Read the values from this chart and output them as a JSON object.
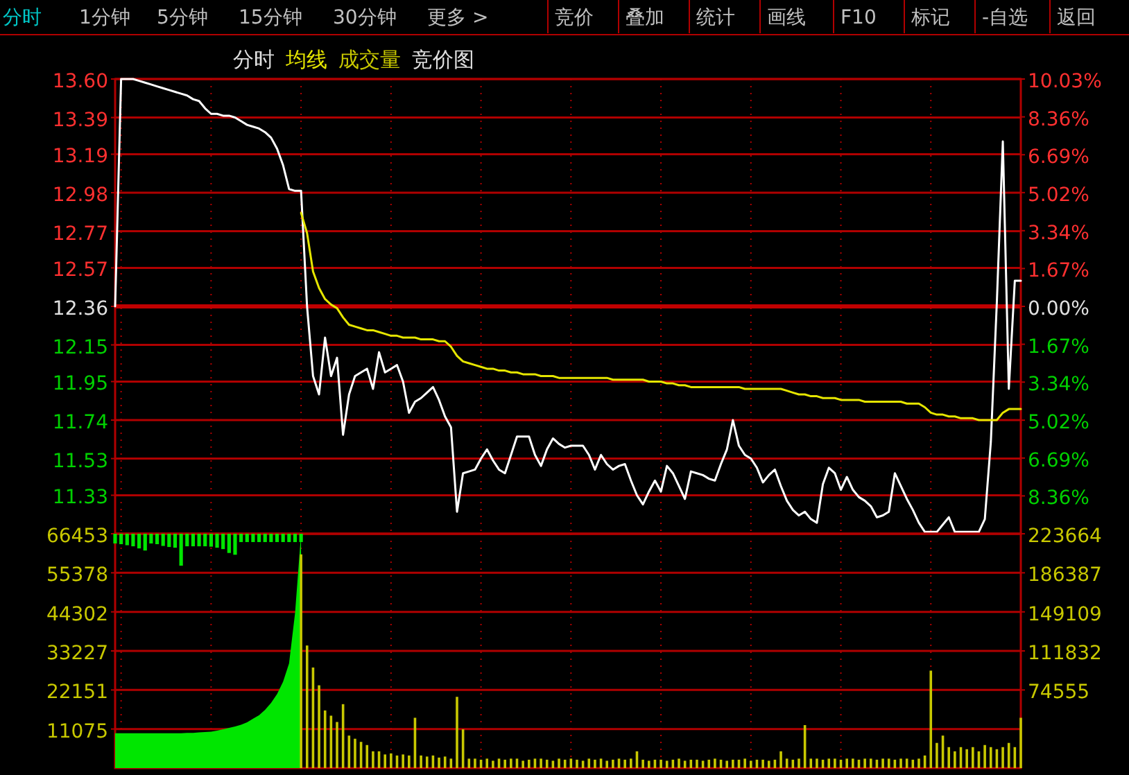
{
  "chart_data": [
    {
      "type": "line",
      "annotations": [
        "分时",
        "1分钟",
        "5分钟",
        "15分钟",
        "30分钟",
        "更多 >",
        "竞价",
        "叠加",
        "统计",
        "画线",
        "F10",
        "标记",
        "-自选",
        "返回",
        "分时",
        "竞价图"
      ],
      "categories": [
        null,
        null,
        null,
        null,
        null,
        null,
        null,
        null,
        null,
        null,
        null,
        null,
        null,
        null,
        null,
        null,
        null,
        null,
        null,
        null,
        null,
        null,
        null,
        null,
        null,
        null,
        null,
        null,
        null,
        null,
        null,
        null,
        null,
        null,
        null,
        null,
        null,
        null,
        null,
        null,
        null,
        null,
        null,
        null,
        null,
        null,
        null,
        null,
        null,
        null,
        null,
        null,
        null,
        null,
        null,
        null,
        null,
        null,
        null,
        null,
        null,
        null,
        null,
        null,
        null,
        null,
        null,
        null,
        null,
        null,
        null,
        null,
        null,
        null,
        null,
        null,
        null,
        null,
        null,
        null,
        null,
        null,
        null,
        null,
        null,
        null,
        null,
        null,
        null,
        null,
        null,
        null,
        null,
        null,
        null,
        null,
        null,
        null,
        null,
        null,
        null,
        null,
        null,
        null,
        null,
        null,
        null,
        null,
        null,
        null,
        null,
        null,
        null,
        null,
        null,
        null,
        null,
        null,
        null,
        null,
        null,
        null,
        null,
        null,
        null,
        null,
        null,
        null,
        null,
        null,
        null,
        null,
        null,
        null,
        null,
        null,
        null,
        null,
        null,
        null,
        null,
        null,
        null,
        null,
        null,
        null,
        null,
        null,
        null,
        null,
        null,
        null
      ],
      "ylim": [
        11.12,
        13.6
      ],
      "yticks": [
        11.33,
        11.53,
        11.74,
        11.95,
        12.15,
        12.36,
        12.57,
        12.77,
        12.98,
        13.19,
        13.39,
        {
          "value": 13.6,
          "label": "13.60"
        }
      ],
      "y2lim": [
        -10.03,
        10.03
      ],
      "y2ticks": [
        {
          "value": -8.36,
          "label": "8.36%"
        },
        {
          "value": -6.69,
          "label": "6.69%"
        },
        {
          "value": -5.02,
          "label": "5.02%"
        },
        {
          "value": -3.34,
          "label": "3.34%"
        },
        {
          "value": -1.67,
          "label": "1.67%"
        },
        {
          "value": 0,
          "label": "0.00%"
        },
        {
          "value": 1.67,
          "label": "1.67%"
        },
        {
          "value": 3.34,
          "label": "3.34%"
        },
        {
          "value": 5.02,
          "label": "5.02%"
        },
        {
          "value": 6.69,
          "label": "6.69%"
        },
        {
          "value": 8.36,
          "label": "8.36%"
        },
        {
          "value": 10.03,
          "label": "10.03%"
        }
      ],
      "grid": true,
      "ref_lines": [
        {
          "axis": "y",
          "value": 12.36,
          "color": "#c00000"
        }
      ],
      "series": [
        {
          "color": "#ffffff",
          "values": [
            12.36,
            13.6,
            13.6,
            13.6,
            13.59,
            13.58,
            13.57,
            13.56,
            13.55,
            13.54,
            13.53,
            13.52,
            13.51,
            13.49,
            13.48,
            13.44,
            13.41,
            13.41,
            13.4,
            13.4,
            13.39,
            13.37,
            13.35,
            13.34,
            13.33,
            13.31,
            13.28,
            13.22,
            13.13,
            13.0,
            12.99,
            12.99,
            12.36,
            11.98,
            11.88,
            12.19,
            11.98,
            12.08,
            11.66,
            11.88,
            11.98,
            12.0,
            12.02,
            11.91,
            12.11,
            12.0,
            12.02,
            12.04,
            11.95,
            11.78,
            11.84,
            11.86,
            11.89,
            11.92,
            11.85,
            11.76,
            11.7,
            11.24,
            11.45,
            11.46,
            11.47,
            11.53,
            11.58,
            11.52,
            11.47,
            11.45,
            11.55,
            11.65,
            11.65,
            11.65,
            11.55,
            11.49,
            11.58,
            11.64,
            11.61,
            11.59,
            11.6,
            11.6,
            11.6,
            11.55,
            11.47,
            11.55,
            11.5,
            11.47,
            11.49,
            11.5,
            11.41,
            11.33,
            11.28,
            11.35,
            11.41,
            11.35,
            11.49,
            11.45,
            11.38,
            11.31,
            11.46,
            11.45,
            11.44,
            11.42,
            11.41,
            11.5,
            11.58,
            11.74,
            11.6,
            11.55,
            11.53,
            11.48,
            11.4,
            11.44,
            11.47,
            11.38,
            11.3,
            11.25,
            11.22,
            11.24,
            11.2,
            11.18,
            11.39,
            11.48,
            11.45,
            11.36,
            11.43,
            11.36,
            11.32,
            11.3,
            11.27,
            11.21,
            11.22,
            11.24,
            11.45,
            11.38,
            11.31,
            11.25,
            11.18,
            11.13,
            11.13,
            11.13,
            11.17,
            11.21,
            11.13,
            11.13,
            11.13,
            11.13,
            11.13,
            11.2,
            11.62,
            12.38,
            13.26,
            11.91,
            12.5,
            12.5
          ]
        },
        {
          "name": "均线",
          "color": "#e6e600",
          "values": [
            null,
            null,
            null,
            null,
            null,
            null,
            null,
            null,
            null,
            null,
            null,
            null,
            null,
            null,
            null,
            null,
            null,
            null,
            null,
            null,
            null,
            null,
            null,
            null,
            null,
            null,
            null,
            null,
            null,
            null,
            null,
            12.87,
            12.76,
            12.55,
            12.46,
            12.4,
            12.37,
            12.35,
            12.3,
            12.26,
            12.25,
            12.24,
            12.23,
            12.23,
            12.22,
            12.21,
            12.2,
            12.2,
            12.19,
            12.19,
            12.19,
            12.18,
            12.18,
            12.18,
            12.17,
            12.17,
            12.14,
            12.09,
            12.06,
            12.05,
            12.04,
            12.03,
            12.02,
            12.02,
            12.01,
            12.01,
            12.0,
            12.0,
            11.99,
            11.99,
            11.99,
            11.98,
            11.98,
            11.98,
            11.97,
            11.97,
            11.97,
            11.97,
            11.97,
            11.97,
            11.97,
            11.97,
            11.97,
            11.96,
            11.96,
            11.96,
            11.96,
            11.96,
            11.96,
            11.95,
            11.95,
            11.95,
            11.94,
            11.94,
            11.93,
            11.93,
            11.92,
            11.92,
            11.92,
            11.92,
            11.92,
            11.92,
            11.92,
            11.92,
            11.92,
            11.91,
            11.91,
            11.91,
            11.91,
            11.91,
            11.91,
            11.91,
            11.9,
            11.89,
            11.88,
            11.88,
            11.87,
            11.87,
            11.86,
            11.86,
            11.86,
            11.85,
            11.85,
            11.85,
            11.85,
            11.84,
            11.84,
            11.84,
            11.84,
            11.84,
            11.84,
            11.84,
            11.83,
            11.83,
            11.83,
            11.81,
            11.78,
            11.77,
            11.77,
            11.76,
            11.76,
            11.75,
            11.75,
            11.75,
            11.74,
            11.74,
            11.74,
            11.74,
            11.78,
            11.8,
            11.8,
            11.8
          ]
        }
      ]
    },
    {
      "type": "bar",
      "categories": [
        null,
        null,
        null,
        null,
        null,
        null,
        null,
        null,
        null,
        null,
        null,
        null,
        null,
        null,
        null,
        null,
        null,
        null,
        null,
        null,
        null,
        null,
        null,
        null,
        null,
        null,
        null,
        null,
        null,
        null,
        null,
        null,
        null,
        null,
        null,
        null,
        null,
        null,
        null,
        null,
        null,
        null,
        null,
        null,
        null,
        null,
        null,
        null,
        null,
        null,
        null,
        null,
        null,
        null,
        null,
        null,
        null,
        null,
        null,
        null,
        null,
        null,
        null,
        null,
        null,
        null,
        null,
        null,
        null,
        null,
        null,
        null,
        null,
        null,
        null,
        null,
        null,
        null,
        null,
        null,
        null,
        null,
        null,
        null,
        null,
        null,
        null,
        null,
        null,
        null,
        null,
        null,
        null,
        null,
        null,
        null,
        null,
        null,
        null,
        null,
        null,
        null,
        null,
        null,
        null,
        null,
        null,
        null,
        null,
        null,
        null,
        null,
        null,
        null,
        null,
        null,
        null,
        null,
        null,
        null,
        null,
        null,
        null,
        null,
        null,
        null,
        null,
        null,
        null,
        null,
        null,
        null,
        null,
        null,
        null,
        null,
        null,
        null,
        null,
        null,
        null,
        null,
        null,
        null,
        null,
        null,
        null,
        null,
        null,
        null,
        null,
        null
      ],
      "ylim": [
        0,
        66453
      ],
      "yticks": [
        11075,
        22151,
        33227,
        44302,
        55378,
        66453
      ],
      "y2lim": [
        0,
        223664
      ],
      "y2ticks": [
        74555,
        111832,
        149109,
        186387,
        223664
      ],
      "grid": true,
      "series": [
        {
          "type": "area",
          "color": "#00e600",
          "values": [
            9900,
            9900,
            9900,
            9900,
            9900,
            9900,
            9900,
            9900,
            9900,
            9900,
            9900,
            9900,
            10000,
            10000,
            10100,
            10200,
            10300,
            10600,
            11000,
            11400,
            11800,
            12300,
            13000,
            14000,
            15000,
            16500,
            18500,
            21000,
            24500,
            29700,
            44000,
            66453,
            null,
            null,
            null,
            null,
            null,
            null,
            null,
            null,
            null,
            null,
            null,
            null,
            null,
            null,
            null,
            null,
            null,
            null,
            null,
            null,
            null,
            null,
            null,
            null,
            null,
            null,
            null,
            null,
            null,
            null,
            null,
            null,
            null,
            null,
            null,
            null,
            null,
            null,
            null,
            null,
            null,
            null,
            null,
            null,
            null,
            null,
            null,
            null,
            null,
            null,
            null,
            null,
            null,
            null,
            null,
            null,
            null,
            null,
            null,
            null,
            null,
            null,
            null,
            null,
            null,
            null,
            null,
            null,
            null,
            null,
            null,
            null,
            null,
            null,
            null,
            null,
            null,
            null,
            null,
            null,
            null,
            null,
            null,
            null,
            null,
            null,
            null,
            null,
            null,
            null,
            null,
            null,
            null,
            null,
            null,
            null,
            null,
            null,
            null,
            null,
            null,
            null,
            null,
            null,
            null,
            null,
            null,
            null,
            null,
            null,
            null,
            null,
            null,
            null,
            null,
            null,
            null,
            null,
            null,
            null
          ]
        },
        {
          "type": "bar",
          "color": "#00e600",
          "base": [
            63700,
            63500,
            63200,
            62900,
            62300,
            61700,
            63700,
            63500,
            63000,
            62700,
            62500,
            57400,
            62900,
            62900,
            62900,
            62900,
            62800,
            62500,
            62100,
            61000,
            60500,
            64100,
            64100,
            64100,
            64100,
            64100,
            64100,
            64100,
            64100,
            64100,
            64100,
            64100,
            null,
            null,
            null,
            null,
            null,
            null,
            null,
            null,
            null,
            null,
            null,
            null,
            null,
            null,
            null,
            null,
            null,
            null,
            null,
            null,
            null,
            null,
            null,
            null,
            null,
            null,
            null,
            null,
            null,
            null,
            null,
            null,
            null,
            null,
            null,
            null,
            null,
            null,
            null,
            null,
            null,
            null,
            null,
            null,
            null,
            null,
            null,
            null,
            null,
            null,
            null,
            null,
            null,
            null,
            null,
            null,
            null,
            null,
            null,
            null,
            null,
            null,
            null,
            null,
            null,
            null,
            null,
            null,
            null,
            null,
            null,
            null,
            null,
            null,
            null,
            null,
            null,
            null,
            null,
            null,
            null,
            null,
            null,
            null,
            null,
            null,
            null,
            null,
            null,
            null,
            null,
            null,
            null,
            null,
            null,
            null,
            null,
            null,
            null,
            null,
            null,
            null,
            null,
            null,
            null,
            null,
            null,
            null,
            null,
            null,
            null,
            null,
            null,
            null,
            null,
            null,
            null,
            null,
            null,
            null
          ],
          "values": [
            2753,
            2953,
            3253,
            3553,
            4153,
            4753,
            2753,
            2953,
            3453,
            3753,
            3953,
            9053,
            3553,
            3553,
            3553,
            3553,
            3653,
            3953,
            4353,
            5453,
            5953,
            2353,
            2353,
            2353,
            2353,
            2353,
            2353,
            2353,
            2353,
            2353,
            2353,
            2353,
            null,
            null,
            null,
            null,
            null,
            null,
            null,
            null,
            null,
            null,
            null,
            null,
            null,
            null,
            null,
            null,
            null,
            null,
            null,
            null,
            null,
            null,
            null,
            null,
            null,
            null,
            null,
            null,
            null,
            null,
            null,
            null,
            null,
            null,
            null,
            null,
            null,
            null,
            null,
            null,
            null,
            null,
            null,
            null,
            null,
            null,
            null,
            null,
            null,
            null,
            null,
            null,
            null,
            null,
            null,
            null,
            null,
            null,
            null,
            null,
            null,
            null,
            null,
            null,
            null,
            null,
            null,
            null,
            null,
            null,
            null,
            null,
            null,
            null,
            null,
            null,
            null,
            null,
            null,
            null,
            null,
            null,
            null,
            null,
            null,
            null,
            null,
            null,
            null,
            null,
            null,
            null,
            null,
            null,
            null,
            null,
            null,
            null,
            null,
            null,
            null,
            null,
            null,
            null,
            null,
            null,
            null,
            null,
            null,
            null,
            null,
            null,
            null,
            null,
            null,
            null,
            null,
            null,
            null,
            null
          ]
        },
        {
          "type": "bar",
          "name": "成交量",
          "axis": "y2",
          "color": "#c8c800",
          "values": [
            null,
            null,
            null,
            null,
            null,
            null,
            null,
            null,
            null,
            null,
            null,
            null,
            null,
            null,
            null,
            null,
            null,
            null,
            null,
            null,
            null,
            null,
            null,
            null,
            null,
            null,
            null,
            null,
            null,
            null,
            null,
            204000,
            117000,
            96000,
            79000,
            55000,
            50000,
            44000,
            61000,
            31000,
            28000,
            25000,
            22000,
            16000,
            16000,
            13000,
            14000,
            12000,
            13000,
            12000,
            48000,
            12000,
            11000,
            12000,
            10000,
            11000,
            9000,
            68000,
            37000,
            9000,
            9000,
            8000,
            9000,
            7000,
            9000,
            8000,
            9000,
            9000,
            7000,
            8000,
            9000,
            9000,
            8000,
            7000,
            9000,
            8000,
            9000,
            8000,
            7000,
            9000,
            8000,
            9000,
            7000,
            8000,
            9000,
            8000,
            9000,
            16000,
            8000,
            7000,
            8000,
            8000,
            7000,
            8000,
            9000,
            7000,
            8000,
            8000,
            7000,
            8000,
            9000,
            8000,
            7000,
            8000,
            8000,
            9000,
            7000,
            8000,
            8000,
            7000,
            8000,
            16000,
            9000,
            8000,
            9000,
            41000,
            9000,
            9000,
            8000,
            9000,
            9000,
            8000,
            9000,
            9000,
            8000,
            9000,
            9000,
            8000,
            9000,
            9000,
            8000,
            9000,
            9000,
            8000,
            9000,
            12000,
            93000,
            24000,
            31000,
            20000,
            16000,
            20000,
            18000,
            20000,
            16000,
            22000,
            20000,
            18000,
            20000,
            24000,
            20000,
            48000
          ]
        }
      ]
    }
  ]
}
